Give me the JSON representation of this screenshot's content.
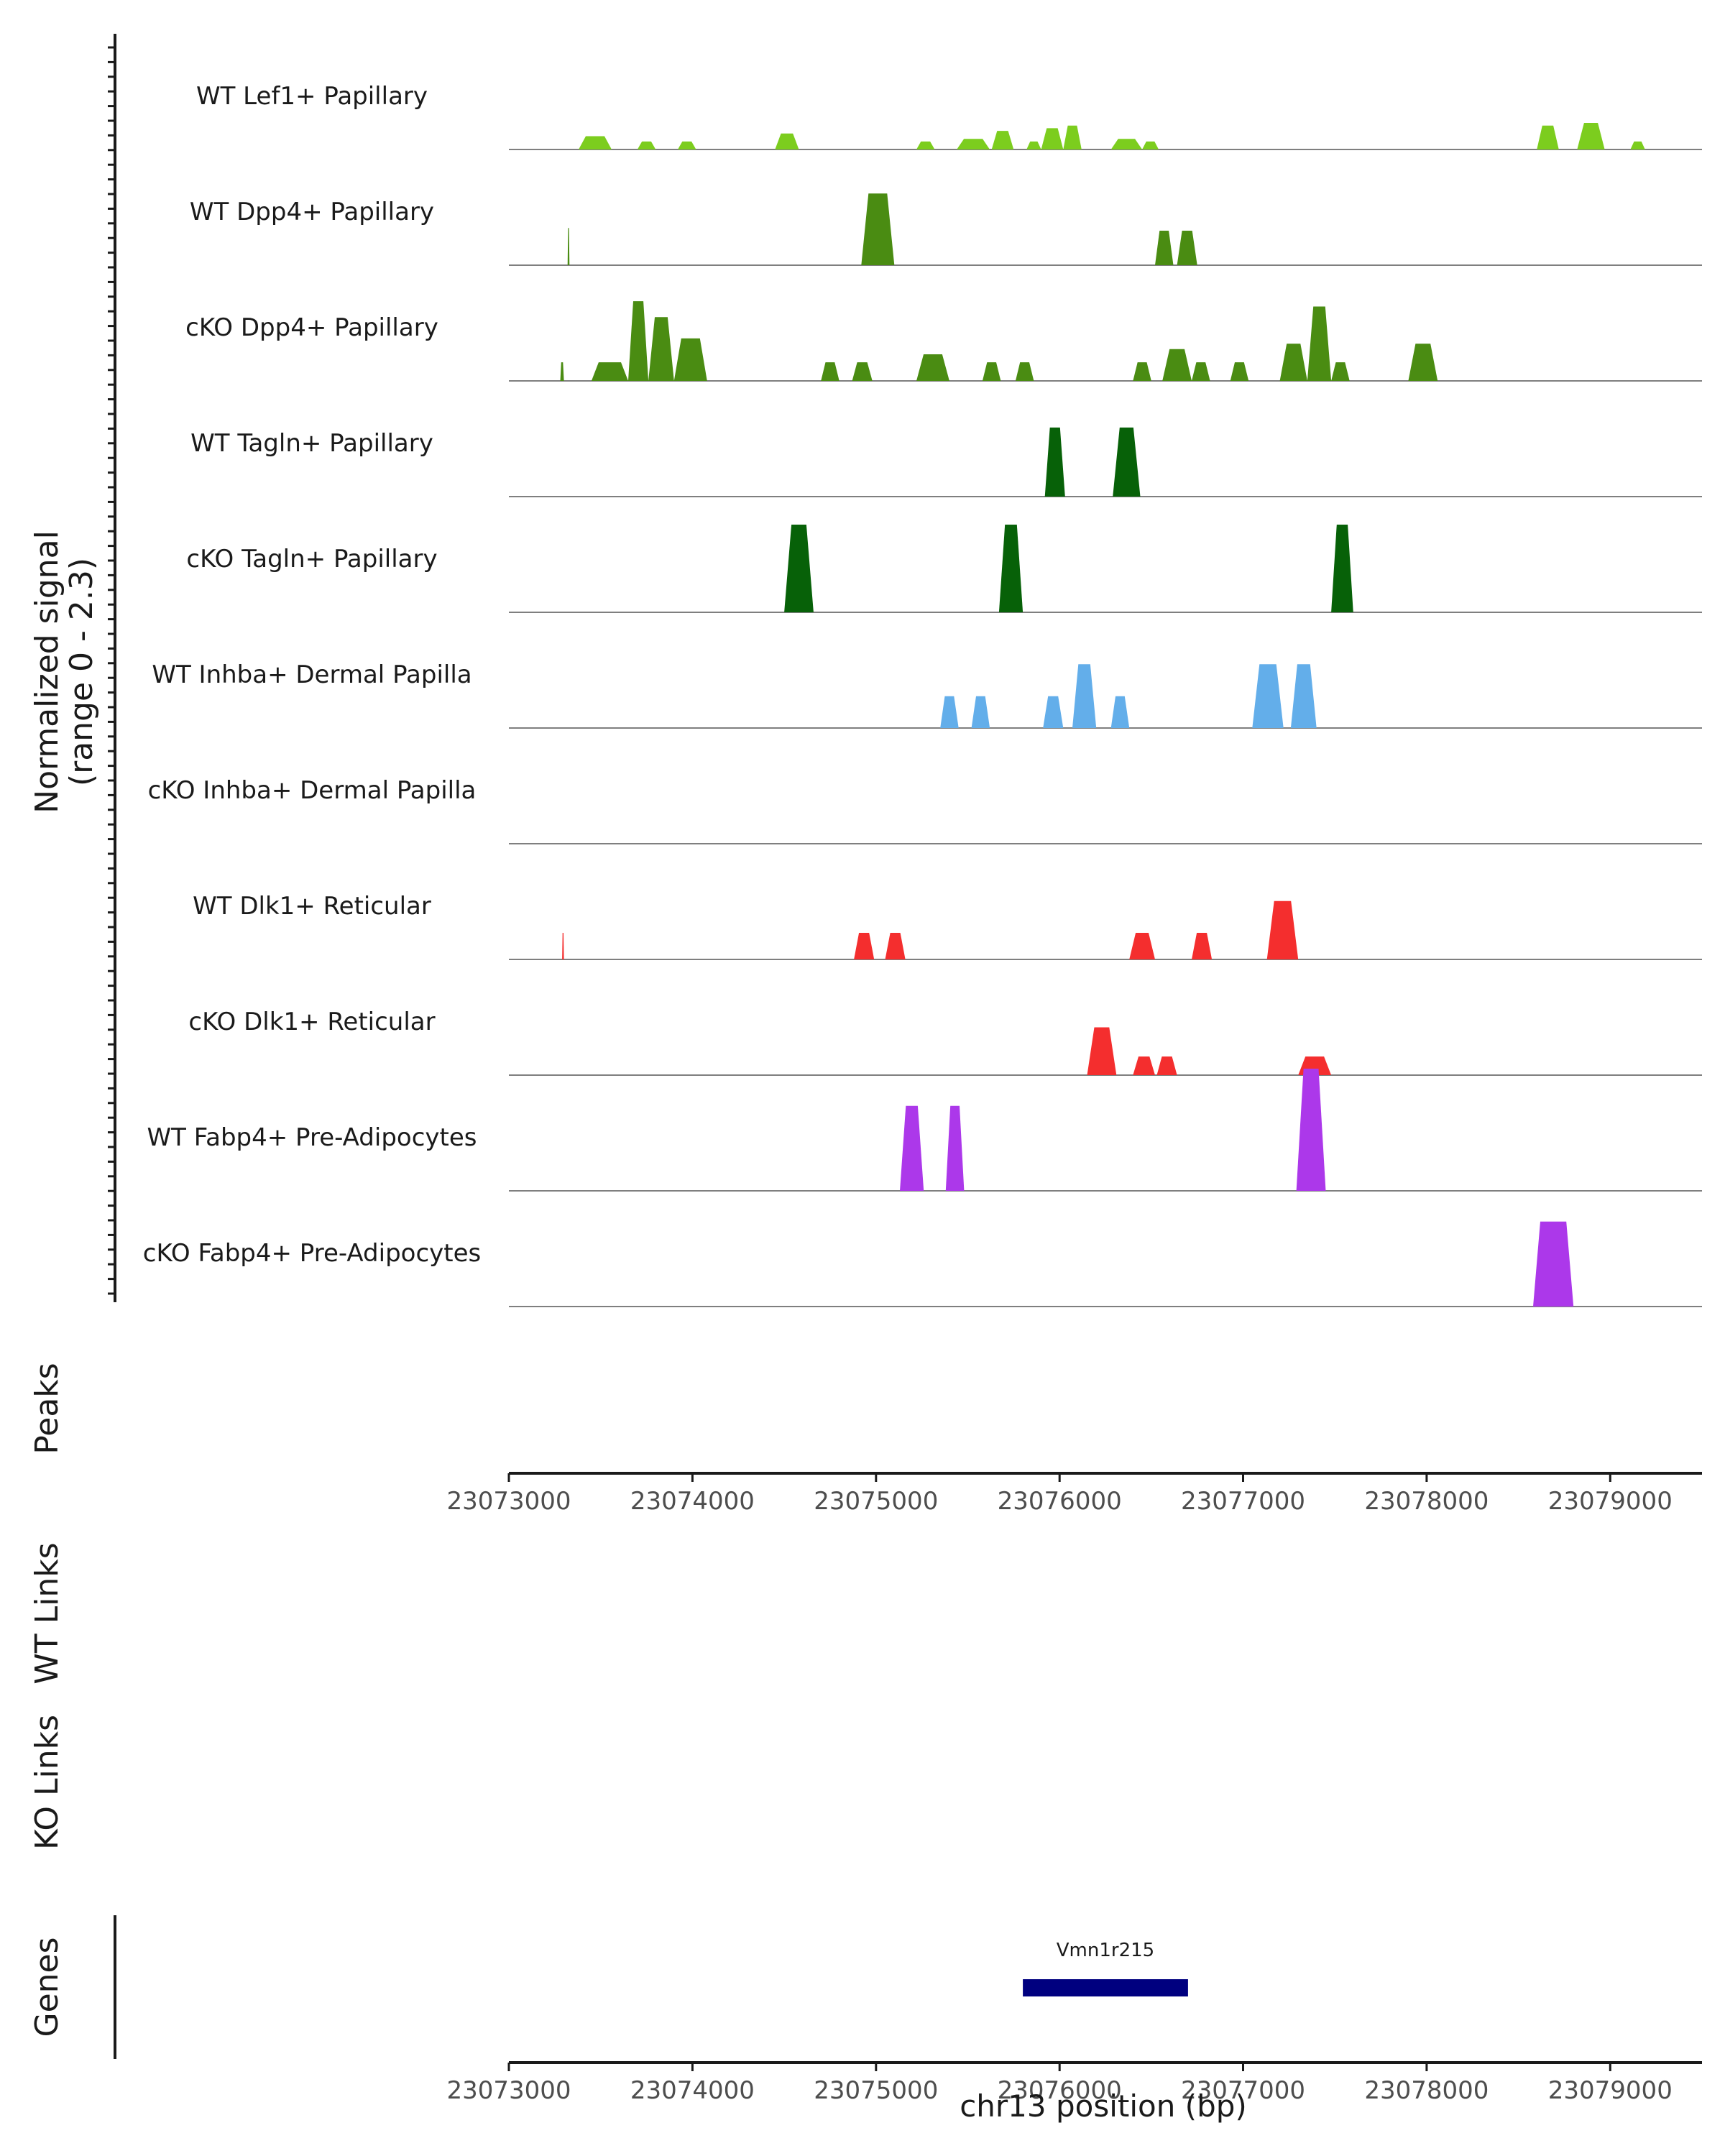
{
  "chart_data": {
    "type": "area",
    "title": "",
    "chromosome": "chr13",
    "xlabel": "chr13 position (bp)",
    "ylabel": "Normalized signal",
    "ylabel_range": "(range 0 - 2.3)",
    "xlim": [
      23073000,
      23079500
    ],
    "ylim": [
      0,
      2.3
    ],
    "xticks": [
      23073000,
      23074000,
      23075000,
      23076000,
      23077000,
      23078000,
      23079000
    ],
    "tick_labels": [
      "23073000",
      "23074000",
      "23075000",
      "23076000",
      "23077000",
      "23078000",
      "23079000"
    ],
    "tracks": [
      {
        "name": "WT Lef1+ Papillary",
        "color": "#7ccd1e",
        "peaks": [
          [
            23073380,
            23073560,
            0.25
          ],
          [
            23073700,
            23073800,
            0.15
          ],
          [
            23073920,
            23074020,
            0.15
          ],
          [
            23074450,
            23074580,
            0.3
          ],
          [
            23075220,
            23075320,
            0.15
          ],
          [
            23075440,
            23075620,
            0.2
          ],
          [
            23075630,
            23075750,
            0.35
          ],
          [
            23075820,
            23075900,
            0.15
          ],
          [
            23075900,
            23076020,
            0.4
          ],
          [
            23076020,
            23076120,
            0.45
          ],
          [
            23076280,
            23076450,
            0.2
          ],
          [
            23076450,
            23076540,
            0.15
          ],
          [
            23078600,
            23078720,
            0.45
          ],
          [
            23078820,
            23078970,
            0.5
          ],
          [
            23079110,
            23079190,
            0.15
          ]
        ]
      },
      {
        "name": "WT Dpp4+ Papillary",
        "color": "#4a8c12",
        "peaks": [
          [
            23073320,
            23073330,
            0.7
          ],
          [
            23074920,
            23075100,
            1.35
          ],
          [
            23076520,
            23076620,
            0.65
          ],
          [
            23076640,
            23076750,
            0.65
          ]
        ]
      },
      {
        "name": "cKO Dpp4+ Papillary",
        "color": "#4a8c12",
        "peaks": [
          [
            23073280,
            23073300,
            0.35
          ],
          [
            23073450,
            23073650,
            0.35
          ],
          [
            23073650,
            23073760,
            1.5
          ],
          [
            23073760,
            23073900,
            1.2
          ],
          [
            23073900,
            23074080,
            0.8
          ],
          [
            23074700,
            23074800,
            0.35
          ],
          [
            23074870,
            23074980,
            0.35
          ],
          [
            23075220,
            23075400,
            0.5
          ],
          [
            23075580,
            23075680,
            0.35
          ],
          [
            23075760,
            23075860,
            0.35
          ],
          [
            23076400,
            23076500,
            0.35
          ],
          [
            23076560,
            23076720,
            0.6
          ],
          [
            23076720,
            23076820,
            0.35
          ],
          [
            23076930,
            23077030,
            0.35
          ],
          [
            23077200,
            23077350,
            0.7
          ],
          [
            23077350,
            23077480,
            1.4
          ],
          [
            23077480,
            23077580,
            0.35
          ],
          [
            23077900,
            23078060,
            0.7
          ]
        ]
      },
      {
        "name": "WT Tagln+ Papillary",
        "color": "#076108",
        "peaks": [
          [
            23075920,
            23076030,
            1.3
          ],
          [
            23076290,
            23076440,
            1.3
          ]
        ]
      },
      {
        "name": "cKO Tagln+ Papillary",
        "color": "#076108",
        "peaks": [
          [
            23074500,
            23074660,
            1.65
          ],
          [
            23075670,
            23075800,
            1.65
          ],
          [
            23077480,
            23077600,
            1.65
          ]
        ]
      },
      {
        "name": "WT Inhba+ Dermal Papilla",
        "color": "#63aeea",
        "peaks": [
          [
            23075350,
            23075450,
            0.6
          ],
          [
            23075520,
            23075620,
            0.6
          ],
          [
            23075910,
            23076020,
            0.6
          ],
          [
            23076070,
            23076200,
            1.2
          ],
          [
            23076280,
            23076380,
            0.6
          ],
          [
            23077050,
            23077220,
            1.2
          ],
          [
            23077260,
            23077400,
            1.2
          ]
        ]
      },
      {
        "name": "cKO Inhba+ Dermal Papilla",
        "color": "#63aeea",
        "peaks": []
      },
      {
        "name": "WT Dlk1+ Reticular",
        "color": "#f42e2e",
        "peaks": [
          [
            23073290,
            23073300,
            0.5
          ],
          [
            23074880,
            23074990,
            0.5
          ],
          [
            23075050,
            23075160,
            0.5
          ],
          [
            23076380,
            23076520,
            0.5
          ],
          [
            23076720,
            23076830,
            0.5
          ],
          [
            23077130,
            23077300,
            1.1
          ]
        ]
      },
      {
        "name": "cKO Dlk1+ Reticular",
        "color": "#f42e2e",
        "peaks": [
          [
            23076150,
            23076310,
            0.9
          ],
          [
            23076400,
            23076520,
            0.35
          ],
          [
            23076530,
            23076640,
            0.35
          ],
          [
            23077300,
            23077480,
            0.35
          ]
        ]
      },
      {
        "name": "WT Fabp4+ Pre-Adipocytes",
        "color": "#ac38ea",
        "peaks": [
          [
            23075130,
            23075260,
            1.6
          ],
          [
            23075380,
            23075480,
            1.6
          ],
          [
            23077290,
            23077450,
            2.3
          ]
        ]
      },
      {
        "name": "cKO Fabp4+ Pre-Adipocytes",
        "color": "#ac38ea",
        "peaks": [
          [
            23078580,
            23078800,
            1.6
          ]
        ]
      }
    ],
    "extra_tracks": [
      "Peaks",
      "WT Links",
      "KO Links"
    ],
    "genes_label": "Genes",
    "gene": {
      "name": "Vmn1r215",
      "start": 23075800,
      "end": 23076700,
      "color": "#00007f"
    }
  }
}
